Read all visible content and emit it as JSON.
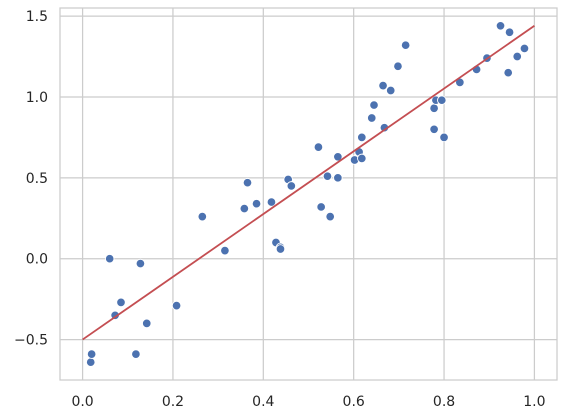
{
  "chart_data": {
    "type": "scatter",
    "title": "",
    "xlabel": "",
    "ylabel": "",
    "xlim": [
      -0.05,
      1.05
    ],
    "ylim": [
      -0.75,
      1.55
    ],
    "xticks": [
      0.0,
      0.2,
      0.4,
      0.6,
      0.8,
      1.0
    ],
    "xtick_labels": [
      "0.0",
      "0.2",
      "0.4",
      "0.6",
      "0.8",
      "1.0"
    ],
    "yticks": [
      -0.5,
      0.0,
      0.5,
      1.0,
      1.5
    ],
    "ytick_labels": [
      "−0.5",
      "0.0",
      "0.5",
      "1.0",
      "1.5"
    ],
    "grid": true,
    "series": [
      {
        "kind": "scatter",
        "color": "#4c72b0",
        "points": [
          [
            0.018,
            -0.64
          ],
          [
            0.02,
            -0.59
          ],
          [
            0.06,
            0.0
          ],
          [
            0.072,
            -0.35
          ],
          [
            0.085,
            -0.27
          ],
          [
            0.118,
            -0.59
          ],
          [
            0.128,
            -0.03
          ],
          [
            0.142,
            -0.4
          ],
          [
            0.208,
            -0.29
          ],
          [
            0.265,
            0.26
          ],
          [
            0.315,
            0.05
          ],
          [
            0.358,
            0.31
          ],
          [
            0.365,
            0.47
          ],
          [
            0.385,
            0.34
          ],
          [
            0.418,
            0.35
          ],
          [
            0.428,
            0.1
          ],
          [
            0.438,
            0.07
          ],
          [
            0.438,
            0.06
          ],
          [
            0.455,
            0.49
          ],
          [
            0.462,
            0.45
          ],
          [
            0.522,
            0.69
          ],
          [
            0.528,
            0.32
          ],
          [
            0.542,
            0.51
          ],
          [
            0.548,
            0.26
          ],
          [
            0.565,
            0.63
          ],
          [
            0.565,
            0.5
          ],
          [
            0.602,
            0.61
          ],
          [
            0.612,
            0.66
          ],
          [
            0.618,
            0.75
          ],
          [
            0.618,
            0.62
          ],
          [
            0.64,
            0.87
          ],
          [
            0.645,
            0.95
          ],
          [
            0.665,
            1.07
          ],
          [
            0.668,
            0.81
          ],
          [
            0.682,
            1.04
          ],
          [
            0.698,
            1.19
          ],
          [
            0.715,
            1.32
          ],
          [
            0.778,
            0.8
          ],
          [
            0.778,
            0.93
          ],
          [
            0.782,
            0.98
          ],
          [
            0.795,
            0.98
          ],
          [
            0.8,
            0.75
          ],
          [
            0.835,
            1.09
          ],
          [
            0.872,
            1.17
          ],
          [
            0.895,
            1.24
          ],
          [
            0.925,
            1.44
          ],
          [
            0.942,
            1.15
          ],
          [
            0.945,
            1.4
          ],
          [
            0.962,
            1.25
          ],
          [
            0.978,
            1.3
          ]
        ]
      },
      {
        "kind": "line",
        "color": "#c44e52",
        "points": [
          [
            0.0,
            -0.5
          ],
          [
            1.0,
            1.44
          ]
        ]
      }
    ]
  }
}
